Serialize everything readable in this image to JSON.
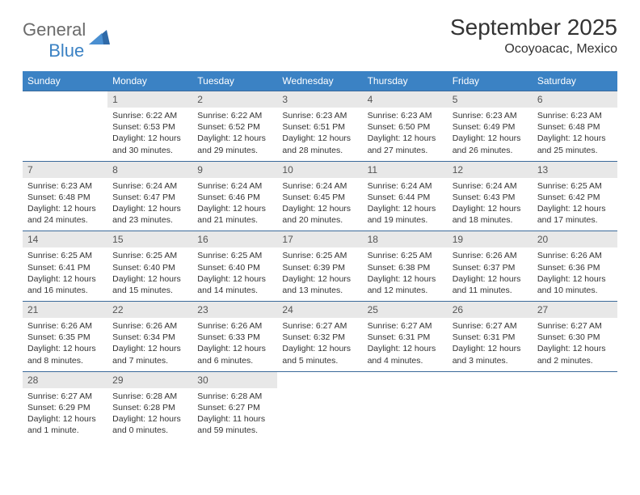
{
  "logo": {
    "word1": "General",
    "word2": "Blue"
  },
  "title": "September 2025",
  "location": "Ocoyoacac, Mexico",
  "colors": {
    "header_bg": "#3b82c4",
    "header_text": "#ffffff",
    "row_border": "#3b6a9a",
    "daynum_bg": "#e8e8e8",
    "daynum_text": "#555555",
    "body_text": "#333333",
    "logo_gray": "#6b6b6b",
    "logo_blue": "#3b82c4"
  },
  "weekdays": [
    "Sunday",
    "Monday",
    "Tuesday",
    "Wednesday",
    "Thursday",
    "Friday",
    "Saturday"
  ],
  "weeks": [
    [
      null,
      {
        "n": "1",
        "sr": "Sunrise: 6:22 AM",
        "ss": "Sunset: 6:53 PM",
        "d1": "Daylight: 12 hours",
        "d2": "and 30 minutes."
      },
      {
        "n": "2",
        "sr": "Sunrise: 6:22 AM",
        "ss": "Sunset: 6:52 PM",
        "d1": "Daylight: 12 hours",
        "d2": "and 29 minutes."
      },
      {
        "n": "3",
        "sr": "Sunrise: 6:23 AM",
        "ss": "Sunset: 6:51 PM",
        "d1": "Daylight: 12 hours",
        "d2": "and 28 minutes."
      },
      {
        "n": "4",
        "sr": "Sunrise: 6:23 AM",
        "ss": "Sunset: 6:50 PM",
        "d1": "Daylight: 12 hours",
        "d2": "and 27 minutes."
      },
      {
        "n": "5",
        "sr": "Sunrise: 6:23 AM",
        "ss": "Sunset: 6:49 PM",
        "d1": "Daylight: 12 hours",
        "d2": "and 26 minutes."
      },
      {
        "n": "6",
        "sr": "Sunrise: 6:23 AM",
        "ss": "Sunset: 6:48 PM",
        "d1": "Daylight: 12 hours",
        "d2": "and 25 minutes."
      }
    ],
    [
      {
        "n": "7",
        "sr": "Sunrise: 6:23 AM",
        "ss": "Sunset: 6:48 PM",
        "d1": "Daylight: 12 hours",
        "d2": "and 24 minutes."
      },
      {
        "n": "8",
        "sr": "Sunrise: 6:24 AM",
        "ss": "Sunset: 6:47 PM",
        "d1": "Daylight: 12 hours",
        "d2": "and 23 minutes."
      },
      {
        "n": "9",
        "sr": "Sunrise: 6:24 AM",
        "ss": "Sunset: 6:46 PM",
        "d1": "Daylight: 12 hours",
        "d2": "and 21 minutes."
      },
      {
        "n": "10",
        "sr": "Sunrise: 6:24 AM",
        "ss": "Sunset: 6:45 PM",
        "d1": "Daylight: 12 hours",
        "d2": "and 20 minutes."
      },
      {
        "n": "11",
        "sr": "Sunrise: 6:24 AM",
        "ss": "Sunset: 6:44 PM",
        "d1": "Daylight: 12 hours",
        "d2": "and 19 minutes."
      },
      {
        "n": "12",
        "sr": "Sunrise: 6:24 AM",
        "ss": "Sunset: 6:43 PM",
        "d1": "Daylight: 12 hours",
        "d2": "and 18 minutes."
      },
      {
        "n": "13",
        "sr": "Sunrise: 6:25 AM",
        "ss": "Sunset: 6:42 PM",
        "d1": "Daylight: 12 hours",
        "d2": "and 17 minutes."
      }
    ],
    [
      {
        "n": "14",
        "sr": "Sunrise: 6:25 AM",
        "ss": "Sunset: 6:41 PM",
        "d1": "Daylight: 12 hours",
        "d2": "and 16 minutes."
      },
      {
        "n": "15",
        "sr": "Sunrise: 6:25 AM",
        "ss": "Sunset: 6:40 PM",
        "d1": "Daylight: 12 hours",
        "d2": "and 15 minutes."
      },
      {
        "n": "16",
        "sr": "Sunrise: 6:25 AM",
        "ss": "Sunset: 6:40 PM",
        "d1": "Daylight: 12 hours",
        "d2": "and 14 minutes."
      },
      {
        "n": "17",
        "sr": "Sunrise: 6:25 AM",
        "ss": "Sunset: 6:39 PM",
        "d1": "Daylight: 12 hours",
        "d2": "and 13 minutes."
      },
      {
        "n": "18",
        "sr": "Sunrise: 6:25 AM",
        "ss": "Sunset: 6:38 PM",
        "d1": "Daylight: 12 hours",
        "d2": "and 12 minutes."
      },
      {
        "n": "19",
        "sr": "Sunrise: 6:26 AM",
        "ss": "Sunset: 6:37 PM",
        "d1": "Daylight: 12 hours",
        "d2": "and 11 minutes."
      },
      {
        "n": "20",
        "sr": "Sunrise: 6:26 AM",
        "ss": "Sunset: 6:36 PM",
        "d1": "Daylight: 12 hours",
        "d2": "and 10 minutes."
      }
    ],
    [
      {
        "n": "21",
        "sr": "Sunrise: 6:26 AM",
        "ss": "Sunset: 6:35 PM",
        "d1": "Daylight: 12 hours",
        "d2": "and 8 minutes."
      },
      {
        "n": "22",
        "sr": "Sunrise: 6:26 AM",
        "ss": "Sunset: 6:34 PM",
        "d1": "Daylight: 12 hours",
        "d2": "and 7 minutes."
      },
      {
        "n": "23",
        "sr": "Sunrise: 6:26 AM",
        "ss": "Sunset: 6:33 PM",
        "d1": "Daylight: 12 hours",
        "d2": "and 6 minutes."
      },
      {
        "n": "24",
        "sr": "Sunrise: 6:27 AM",
        "ss": "Sunset: 6:32 PM",
        "d1": "Daylight: 12 hours",
        "d2": "and 5 minutes."
      },
      {
        "n": "25",
        "sr": "Sunrise: 6:27 AM",
        "ss": "Sunset: 6:31 PM",
        "d1": "Daylight: 12 hours",
        "d2": "and 4 minutes."
      },
      {
        "n": "26",
        "sr": "Sunrise: 6:27 AM",
        "ss": "Sunset: 6:31 PM",
        "d1": "Daylight: 12 hours",
        "d2": "and 3 minutes."
      },
      {
        "n": "27",
        "sr": "Sunrise: 6:27 AM",
        "ss": "Sunset: 6:30 PM",
        "d1": "Daylight: 12 hours",
        "d2": "and 2 minutes."
      }
    ],
    [
      {
        "n": "28",
        "sr": "Sunrise: 6:27 AM",
        "ss": "Sunset: 6:29 PM",
        "d1": "Daylight: 12 hours",
        "d2": "and 1 minute."
      },
      {
        "n": "29",
        "sr": "Sunrise: 6:28 AM",
        "ss": "Sunset: 6:28 PM",
        "d1": "Daylight: 12 hours",
        "d2": "and 0 minutes."
      },
      {
        "n": "30",
        "sr": "Sunrise: 6:28 AM",
        "ss": "Sunset: 6:27 PM",
        "d1": "Daylight: 11 hours",
        "d2": "and 59 minutes."
      },
      null,
      null,
      null,
      null
    ]
  ]
}
